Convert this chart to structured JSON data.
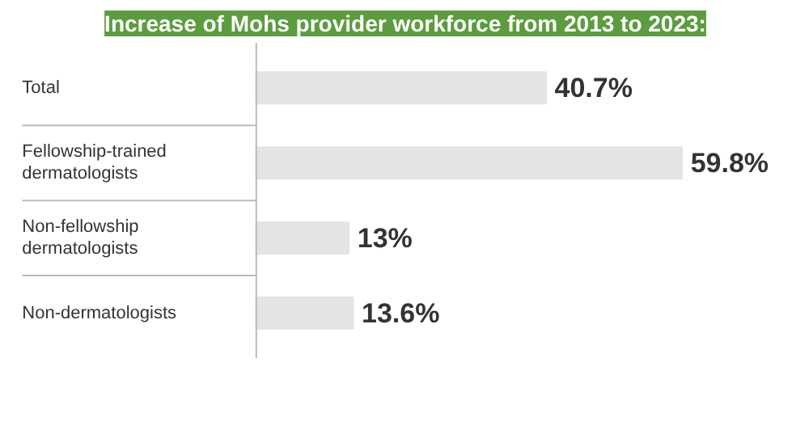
{
  "chart_data": {
    "type": "bar",
    "orientation": "horizontal",
    "title": "Increase of Mohs provider workforce from 2013 to 2023:",
    "categories": [
      "Total",
      "Fellowship-trained dermatologists",
      "Non-fellowship dermatologists",
      "Non-dermatologists"
    ],
    "values": [
      40.7,
      59.8,
      13,
      13.6
    ],
    "value_labels": [
      "40.7%",
      "59.8%",
      "13%",
      "13.6%"
    ],
    "color": "#e4e4e4",
    "grid": false
  }
}
